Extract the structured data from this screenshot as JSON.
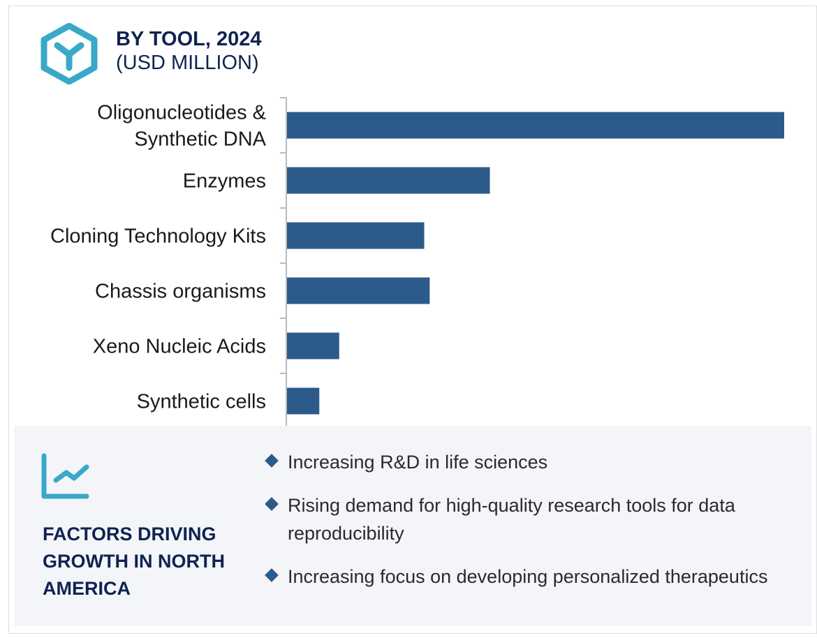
{
  "header": {
    "title": "BY TOOL, 2024",
    "subtitle": "(USD MILLION)",
    "icon": "hexagon-y-icon"
  },
  "colors": {
    "bar": "#2c5a8a",
    "title": "#0f2350",
    "icon": "#3aa8c8",
    "panel": "#f3f5f9"
  },
  "chart_data": {
    "type": "bar",
    "orientation": "horizontal",
    "title": "BY TOOL, 2024",
    "subtitle": "(USD MILLION)",
    "categories": [
      "Oligonucleotides & Synthetic DNA",
      "Enzymes",
      "Cloning Technology Kits",
      "Chassis organisms",
      "Xeno Nucleic Acids",
      "Synthetic cells"
    ],
    "category_lines": [
      [
        "Oligonucleotides &",
        "Synthetic DNA"
      ],
      [
        "Enzymes"
      ],
      [
        "Cloning Technology Kits"
      ],
      [
        "Chassis organisms"
      ],
      [
        "Xeno Nucleic Acids"
      ],
      [
        "Synthetic cells"
      ]
    ],
    "values": [
      100,
      40.8,
      27.6,
      28.7,
      10.5,
      6.5
    ],
    "value_note": "relative (no value axis shown)",
    "xlim": [
      0,
      100
    ],
    "grid": false
  },
  "factors": {
    "icon": "trend-chart-icon",
    "heading": "FACTORS DRIVING GROWTH IN NORTH AMERICA",
    "items": [
      "Increasing R&D in life sciences",
      "Rising demand for high-quality research tools for data reproducibility",
      "Increasing focus on developing personalized therapeutics"
    ]
  }
}
